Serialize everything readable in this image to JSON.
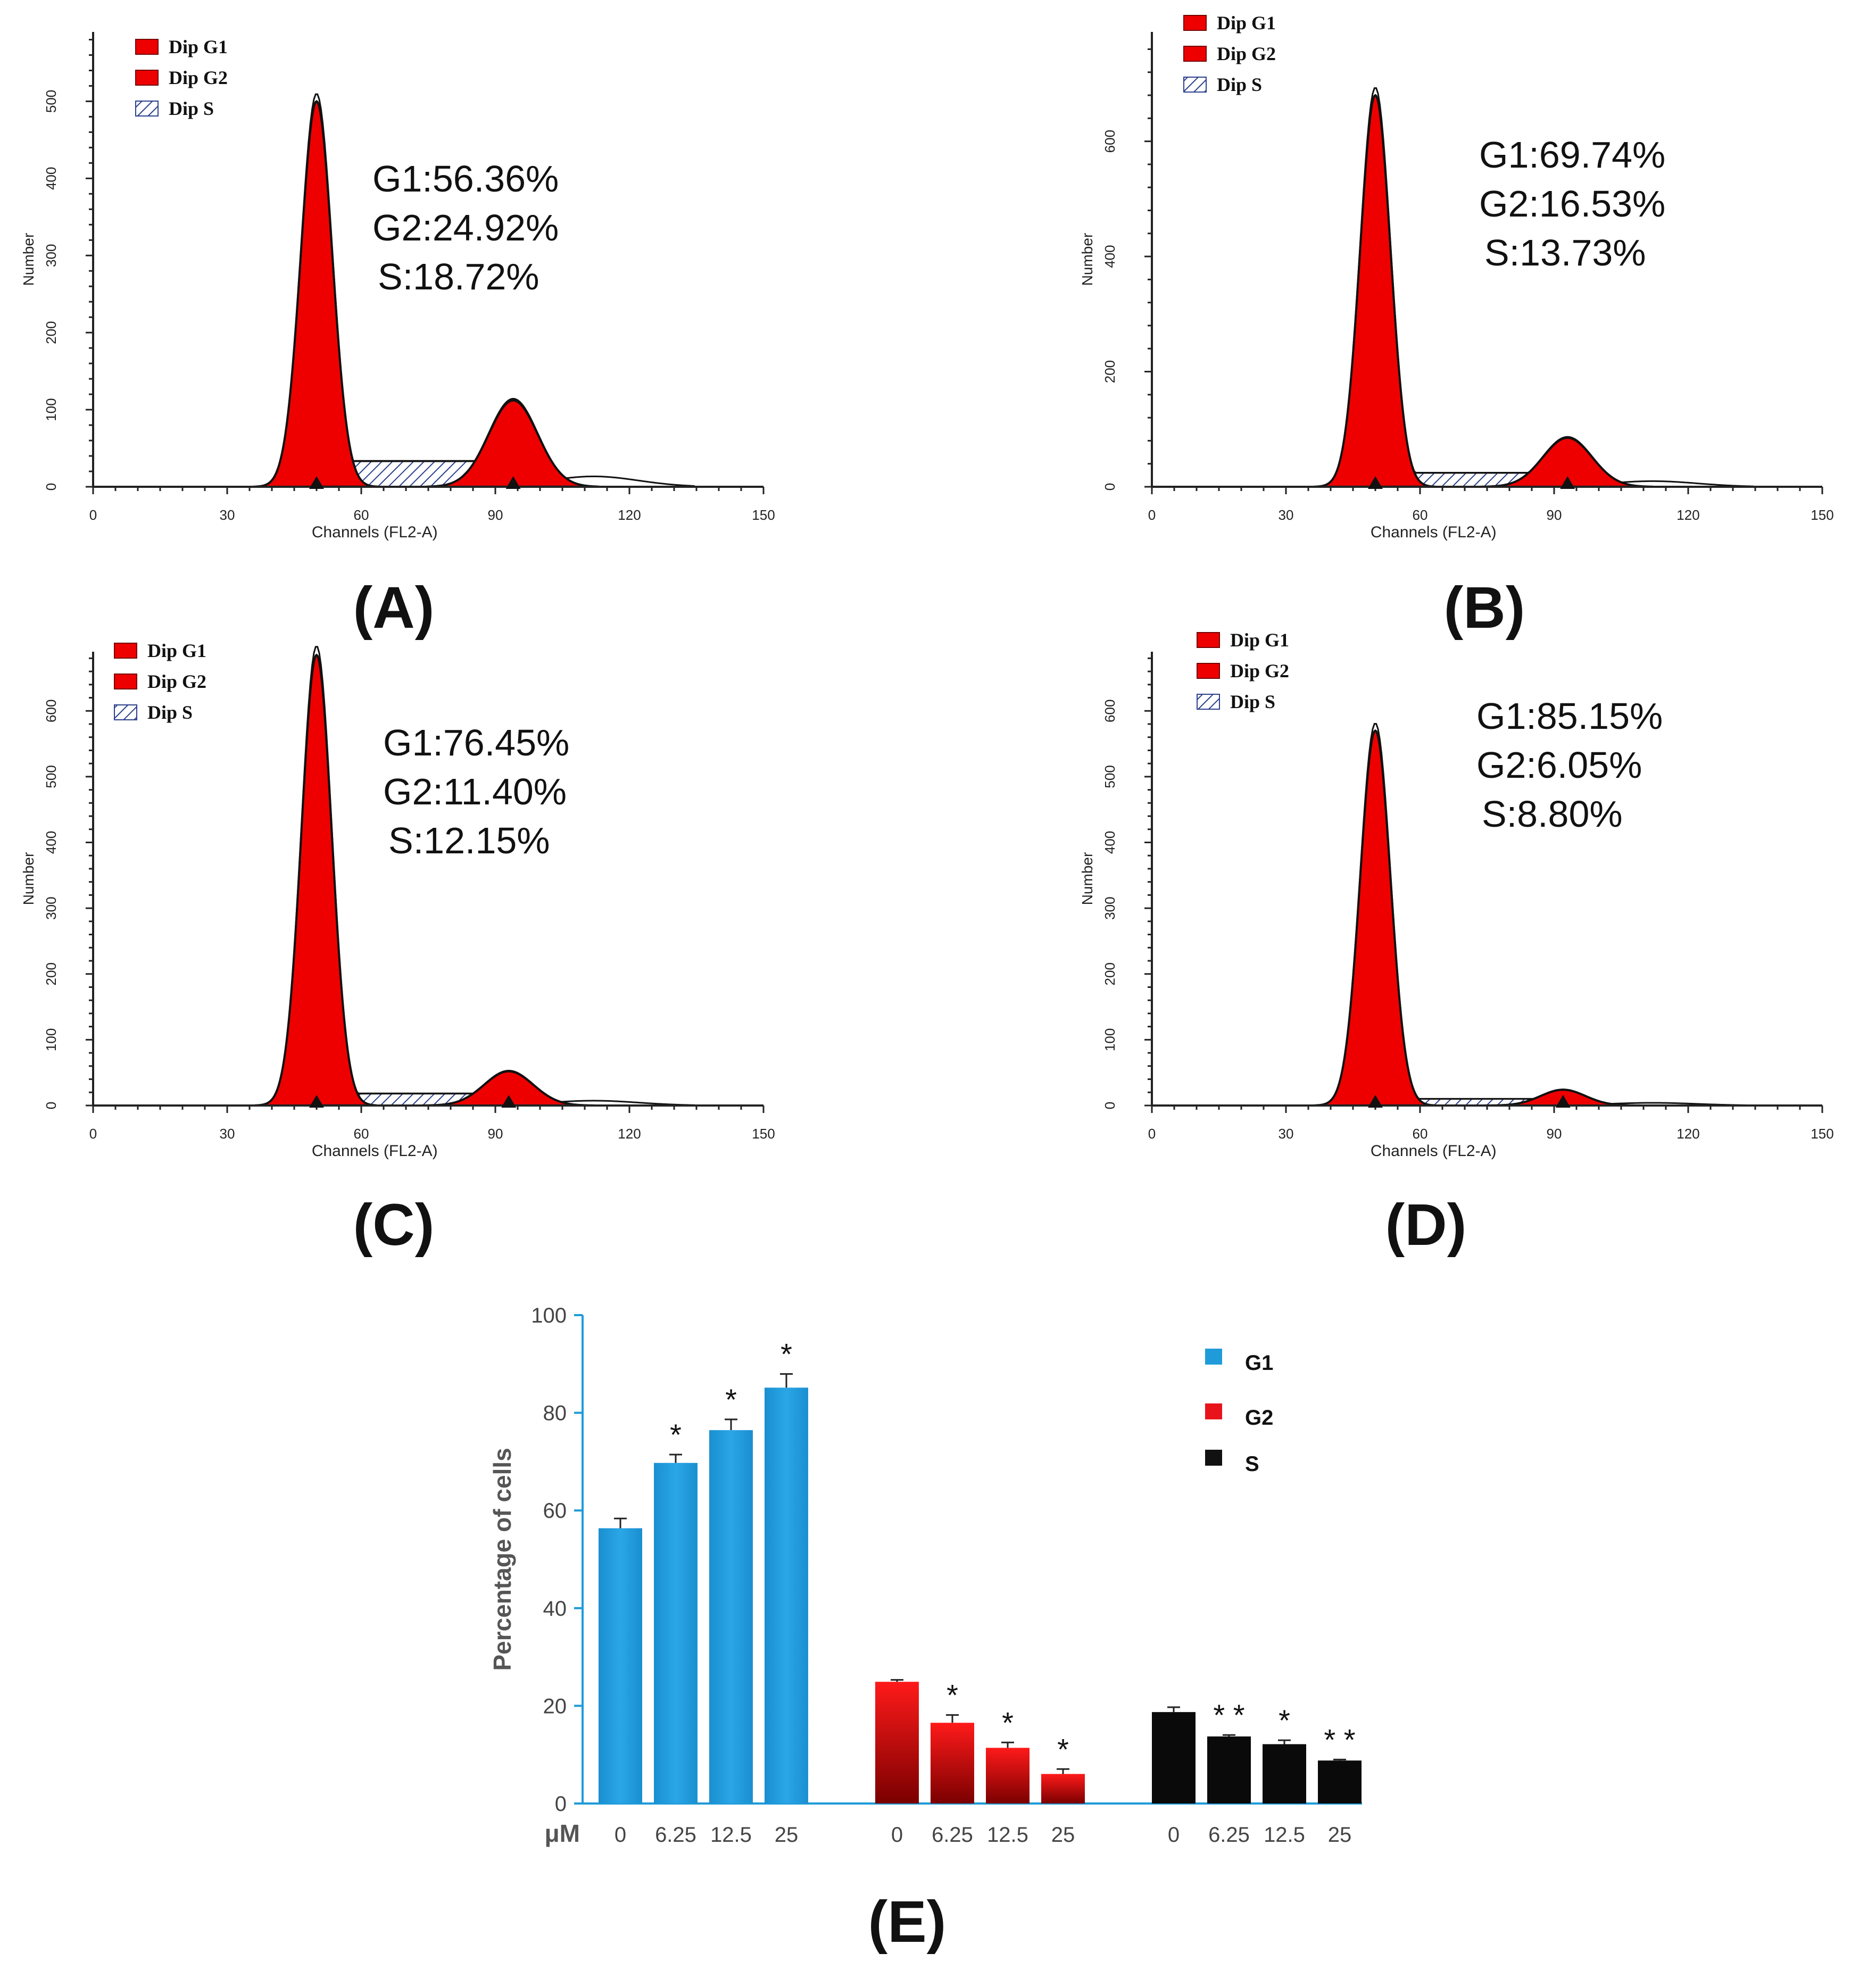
{
  "panels": [
    {
      "label": "(A)",
      "legend": [
        "Dip G1",
        "Dip G2",
        "Dip S"
      ],
      "annotations": [
        "G1:56.36%",
        "G2:24.92%",
        "S:18.72%"
      ],
      "ymax": 590,
      "yticks": [
        0,
        100,
        200,
        300,
        400,
        500
      ],
      "peaks": {
        "g1_center": 50,
        "g1_height": 500,
        "g1_sd": 3.5,
        "g2_center": 94,
        "g2_height": 112,
        "g2_sd": 5.5,
        "s_level": 33
      }
    },
    {
      "label": "(B)",
      "legend": [
        "Dip G1",
        "Dip G2",
        "Dip S"
      ],
      "annotations": [
        "G1:69.74%",
        "G2:16.53%",
        "S:13.73%"
      ],
      "ymax": 790,
      "yticks": [
        0,
        200,
        400,
        600
      ],
      "peaks": {
        "g1_center": 50,
        "g1_height": 680,
        "g1_sd": 3.4,
        "g2_center": 93,
        "g2_height": 85,
        "g2_sd": 5.5,
        "s_level": 24
      }
    },
    {
      "label": "(C)",
      "legend": [
        "Dip G1",
        "Dip G2",
        "Dip S"
      ],
      "annotations": [
        "G1:76.45%",
        "G2:11.40%",
        "S:12.15%"
      ],
      "ymax": 690,
      "yticks": [
        0,
        100,
        200,
        300,
        400,
        500,
        600
      ],
      "peaks": {
        "g1_center": 50,
        "g1_height": 685,
        "g1_sd": 3.4,
        "g2_center": 93,
        "g2_height": 52,
        "g2_sd": 5.5,
        "s_level": 18
      }
    },
    {
      "label": "(D)",
      "legend": [
        "Dip G1",
        "Dip G2",
        "Dip S"
      ],
      "annotations": [
        "G1:85.15%",
        "G2:6.05%",
        "S:8.80%"
      ],
      "ymax": 690,
      "yticks": [
        0,
        100,
        200,
        300,
        400,
        500,
        600
      ],
      "peaks": {
        "g1_center": 50,
        "g1_height": 570,
        "g1_sd": 3.4,
        "g2_center": 92,
        "g2_height": 24,
        "g2_sd": 5.0,
        "s_level": 10
      }
    }
  ],
  "histogram_axes": {
    "xlabel": "Channels (FL2-A)",
    "ylabel": "Number",
    "xticks": [
      0,
      30,
      60,
      90,
      120,
      150
    ],
    "xlim": [
      0,
      150
    ]
  },
  "chart_data": [
    {
      "type": "area",
      "title": "(A)",
      "xlabel": "Channels (FL2-A)",
      "ylabel": "Number",
      "xlim": [
        0,
        150
      ],
      "ylim": [
        0,
        590
      ],
      "series": [
        {
          "name": "Dip G1",
          "values": [
            56.36
          ]
        },
        {
          "name": "Dip G2",
          "values": [
            24.92
          ]
        },
        {
          "name": "Dip S",
          "values": [
            18.72
          ]
        }
      ]
    },
    {
      "type": "area",
      "title": "(B)",
      "xlabel": "Channels (FL2-A)",
      "ylabel": "Number",
      "xlim": [
        0,
        150
      ],
      "ylim": [
        0,
        790
      ],
      "series": [
        {
          "name": "Dip G1",
          "values": [
            69.74
          ]
        },
        {
          "name": "Dip G2",
          "values": [
            16.53
          ]
        },
        {
          "name": "Dip S",
          "values": [
            13.73
          ]
        }
      ]
    },
    {
      "type": "area",
      "title": "(C)",
      "xlabel": "Channels (FL2-A)",
      "ylabel": "Number",
      "xlim": [
        0,
        150
      ],
      "ylim": [
        0,
        690
      ],
      "series": [
        {
          "name": "Dip G1",
          "values": [
            76.45
          ]
        },
        {
          "name": "Dip G2",
          "values": [
            11.4
          ]
        },
        {
          "name": "Dip S",
          "values": [
            12.15
          ]
        }
      ]
    },
    {
      "type": "area",
      "title": "(D)",
      "xlabel": "Channels (FL2-A)",
      "ylabel": "Number",
      "xlim": [
        0,
        150
      ],
      "ylim": [
        0,
        690
      ],
      "series": [
        {
          "name": "Dip G1",
          "values": [
            85.15
          ]
        },
        {
          "name": "Dip G2",
          "values": [
            6.05
          ]
        },
        {
          "name": "Dip S",
          "values": [
            8.8
          ]
        }
      ]
    },
    {
      "type": "bar",
      "title": "(E)",
      "ylabel": "Percentage of cells",
      "xlabel": "μM",
      "ylim": [
        0,
        100
      ],
      "yticks": [
        0,
        20,
        40,
        60,
        80,
        100
      ],
      "groups": [
        {
          "name": "G1",
          "color": "#1f9bd9",
          "categories": [
            "0",
            "6.25",
            "12.5",
            "25"
          ],
          "values": [
            56.36,
            69.74,
            76.45,
            85.15
          ],
          "errors": [
            2.0,
            1.7,
            2.2,
            2.8
          ],
          "stars": [
            "",
            "*",
            "*",
            "*"
          ]
        },
        {
          "name": "G2",
          "color": "#e8141b",
          "categories": [
            "0",
            "6.25",
            "12.5",
            "25"
          ],
          "values": [
            24.92,
            16.53,
            11.4,
            6.05
          ],
          "errors": [
            0.4,
            1.6,
            1.1,
            1.0
          ],
          "stars": [
            "",
            "*",
            "*",
            "*"
          ]
        },
        {
          "name": "S",
          "color": "#111111",
          "categories": [
            "0",
            "6.25",
            "12.5",
            "25"
          ],
          "values": [
            18.72,
            13.73,
            12.15,
            8.8
          ],
          "errors": [
            1.0,
            0.3,
            0.8,
            0.2
          ],
          "stars": [
            "",
            "**",
            "*",
            "**"
          ]
        }
      ]
    }
  ]
}
